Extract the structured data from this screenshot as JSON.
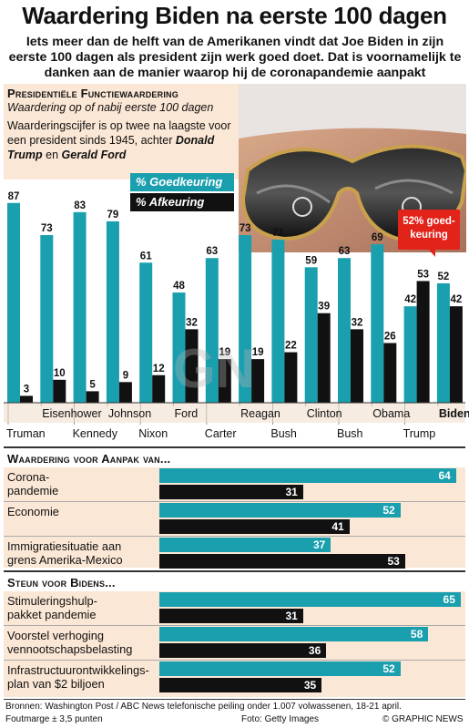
{
  "title": "Waardering Biden na eerste 100 dagen",
  "subtitle": "Iets meer dan de helft van de Amerikanen vindt dat Joe Biden in zijn eerste 100 dagen als president zijn werk goed doet. Dat is voornamelijk te danken aan de manier waarop hij de coronapandemie aanpakt",
  "section1": {
    "heading": "Presidentiële Functiewaardering",
    "subheading": "Waardering op of nabij eerste 100 dagen",
    "note_plain": "Waarderingscijfer is op twee na laagste voor een president sinds 1945, achter",
    "note_name1": "Donald Trump",
    "note_and": "en",
    "note_name2": "Gerald Ford"
  },
  "legend": {
    "approve": "% Goedkeuring",
    "disapprove": "% Afkeuring"
  },
  "callout": "52% goed-keuring",
  "colors": {
    "approve": "#1a9fae",
    "disapprove": "#111111",
    "accent": "#e2231a",
    "panel": "#fbe7d5"
  },
  "chart_data": [
    {
      "type": "bar",
      "categories": [
        "Truman",
        "Eisenhower",
        "Kennedy",
        "Johnson",
        "Nixon",
        "Ford",
        "Carter",
        "Reagan",
        "Bush",
        "Clinton",
        "Bush",
        "Obama",
        "Trump",
        "Biden"
      ],
      "series": [
        {
          "name": "% Goedkeuring",
          "values": [
            87,
            73,
            83,
            79,
            61,
            48,
            63,
            73,
            71,
            59,
            63,
            69,
            42,
            52
          ]
        },
        {
          "name": "% Afkeuring",
          "values": [
            3,
            10,
            5,
            9,
            12,
            32,
            19,
            19,
            22,
            39,
            32,
            26,
            53,
            42
          ]
        }
      ],
      "ylim": [
        0,
        100
      ]
    },
    {
      "type": "bar",
      "title": "Waardering voor Aanpak van...",
      "categories": [
        "Corona-pandemie",
        "Economie",
        "Immigratiesituatie aan grens Amerika-Mexico"
      ],
      "series": [
        {
          "name": "% Goedkeuring",
          "values": [
            64,
            52,
            37
          ]
        },
        {
          "name": "% Afkeuring",
          "values": [
            31,
            41,
            53
          ]
        }
      ]
    },
    {
      "type": "bar",
      "title": "Steun voor Bidens...",
      "categories": [
        "Stimuleringshulp-pakket pandemie",
        "Voorstel verhoging vennootschapsbelasting",
        "Infrastructuurontwikkelings-plan van $2 biljoen"
      ],
      "series": [
        {
          "name": "% Goedkeuring",
          "values": [
            65,
            58,
            52
          ]
        },
        {
          "name": "% Afkeuring",
          "values": [
            31,
            36,
            35
          ]
        }
      ]
    }
  ],
  "section2": {
    "heading": "Waardering voor Aanpak van...",
    "rows": [
      {
        "label1": "Corona-",
        "label2": "pandemie"
      },
      {
        "label1": "Economie",
        "label2": ""
      },
      {
        "label1": "Immigratiesituatie aan",
        "label2": "grens Amerika-Mexico"
      }
    ]
  },
  "section3": {
    "heading": "Steun voor Bidens...",
    "rows": [
      {
        "label1": "Stimuleringshulp-",
        "label2": "pakket pandemie"
      },
      {
        "label1": "Voorstel verhoging",
        "label2": "vennootschapsbelasting"
      },
      {
        "label1": "Infrastructuurontwikkelings-",
        "label2": "plan van $2 biljoen"
      }
    ]
  },
  "footer": {
    "sources": "Bronnen: Washington Post / ABC News telefonische peiling onder 1.007 volwassenen, 18-21 april.",
    "margin": "Foutmarge ± 3,5 punten",
    "photo": "Foto: Getty Images",
    "credit": "© GRAPHIC NEWS"
  },
  "watermark": "GN"
}
